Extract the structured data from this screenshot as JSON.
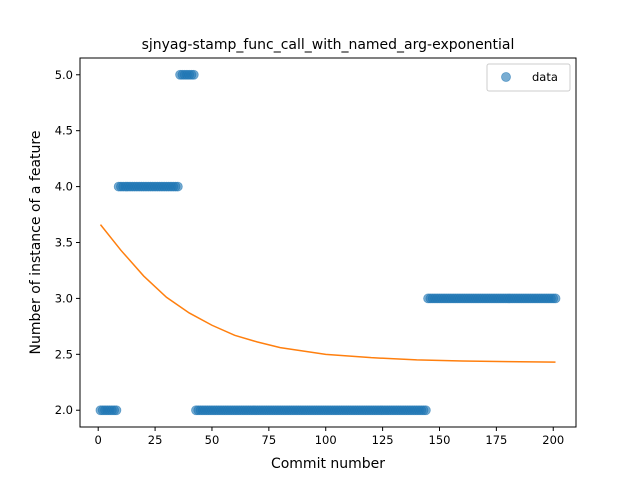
{
  "chart_data": {
    "type": "scatter",
    "title": "sjnyag-stamp_func_call_with_named_arg-exponential",
    "xlabel": "Commit number",
    "ylabel": "Number of instance of a feature",
    "xlim": [
      -8,
      210
    ],
    "ylim": [
      1.85,
      5.15
    ],
    "xticks": [
      0,
      25,
      50,
      75,
      100,
      125,
      150,
      175,
      200
    ],
    "yticks": [
      2.0,
      2.5,
      3.0,
      3.5,
      4.0,
      4.5,
      5.0
    ],
    "ytick_labels": [
      "2.0",
      "2.5",
      "3.0",
      "3.5",
      "4.0",
      "4.5",
      "5.0"
    ],
    "grid": false,
    "legend_position": "top-right",
    "colors": {
      "data": "#1f77b4",
      "fit": "#ff7f0e"
    },
    "series": [
      {
        "name": "data",
        "kind": "scatter",
        "segments": [
          {
            "x_start": 1,
            "x_end": 8,
            "y": 2
          },
          {
            "x_start": 9,
            "x_end": 35,
            "y": 4
          },
          {
            "x_start": 36,
            "x_end": 42,
            "y": 5
          },
          {
            "x_start": 43,
            "x_end": 144,
            "y": 2
          },
          {
            "x_start": 145,
            "x_end": 201,
            "y": 3
          }
        ]
      },
      {
        "kind": "line",
        "x": [
          1,
          10,
          20,
          30,
          40,
          50,
          60,
          70,
          80,
          90,
          100,
          120,
          140,
          160,
          180,
          201
        ],
        "y": [
          3.66,
          3.43,
          3.2,
          3.01,
          2.87,
          2.76,
          2.67,
          2.61,
          2.56,
          2.53,
          2.5,
          2.47,
          2.45,
          2.44,
          2.435,
          2.43
        ]
      }
    ]
  }
}
